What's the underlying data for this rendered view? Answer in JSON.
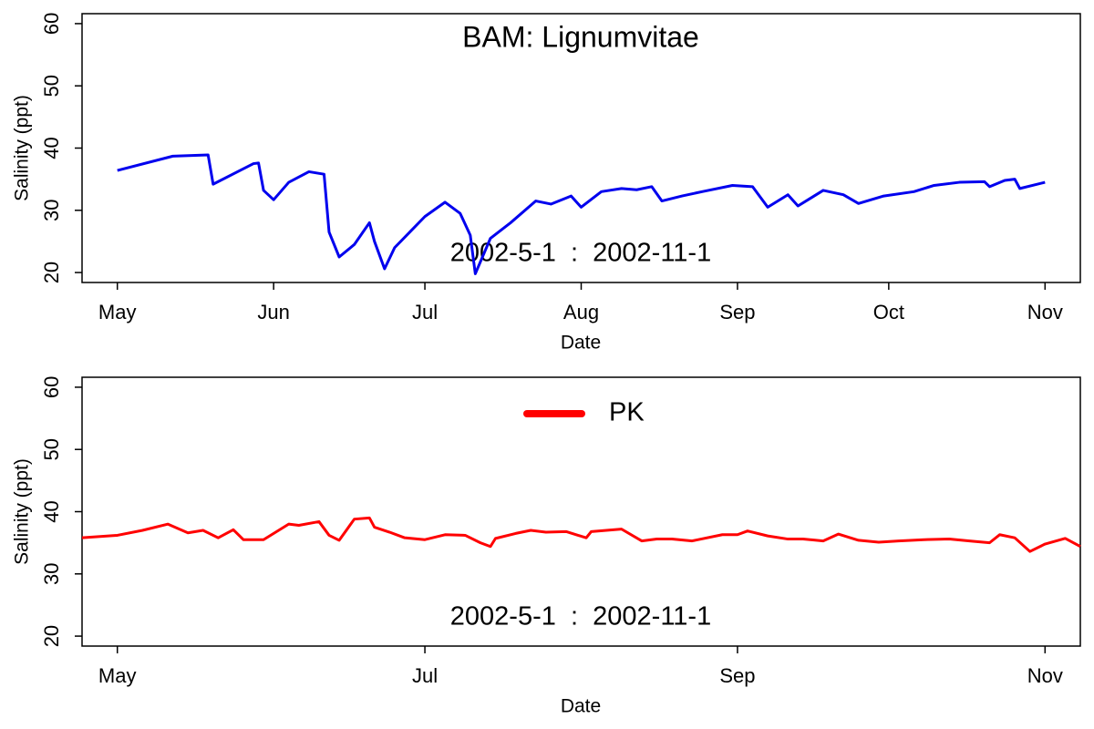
{
  "chart_data": [
    {
      "type": "line",
      "title": "BAM: Lignumvitae",
      "annotation": "2002-5-1  :  2002-11-1",
      "x_label": "Date",
      "y_label": "Salinity (ppt)",
      "x": [
        "2002-05-01",
        "2002-05-12",
        "2002-05-19",
        "2002-05-20",
        "2002-05-28",
        "2002-05-29",
        "2002-05-30",
        "2002-06-01",
        "2002-06-04",
        "2002-06-08",
        "2002-06-11",
        "2002-06-12",
        "2002-06-14",
        "2002-06-17",
        "2002-06-20",
        "2002-06-21",
        "2002-06-23",
        "2002-06-25",
        "2002-06-28",
        "2002-07-01",
        "2002-07-05",
        "2002-07-08",
        "2002-07-10",
        "2002-07-11",
        "2002-07-14",
        "2002-07-18",
        "2002-07-23",
        "2002-07-26",
        "2002-07-30",
        "2002-08-01",
        "2002-08-05",
        "2002-08-09",
        "2002-08-12",
        "2002-08-15",
        "2002-08-17",
        "2002-08-21",
        "2002-08-25",
        "2002-08-31",
        "2002-09-04",
        "2002-09-07",
        "2002-09-11",
        "2002-09-13",
        "2002-09-18",
        "2002-09-22",
        "2002-09-25",
        "2002-09-30",
        "2002-10-06",
        "2002-10-10",
        "2002-10-15",
        "2002-10-20",
        "2002-10-21",
        "2002-10-24",
        "2002-10-26",
        "2002-10-27",
        "2002-11-01"
      ],
      "series": [
        {
          "color": "#0000ee",
          "values": [
            36.4,
            38.7,
            38.9,
            34.2,
            37.5,
            37.6,
            33.2,
            31.7,
            34.5,
            36.2,
            35.8,
            26.5,
            22.5,
            24.5,
            28,
            25,
            20.6,
            24,
            26.5,
            29,
            31.3,
            29.5,
            26,
            19.8,
            25.5,
            28,
            31.5,
            31,
            32.3,
            30.5,
            33,
            33.5,
            33.3,
            33.8,
            31.5,
            32.3,
            33,
            34,
            33.8,
            30.5,
            32.5,
            30.7,
            33.2,
            32.5,
            31.1,
            32.3,
            33,
            34,
            34.5,
            34.6,
            33.8,
            34.8,
            35,
            33.5,
            34.5
          ]
        }
      ],
      "xlim": [
        "2002-04-24",
        "2002-11-08"
      ],
      "xticks": [
        {
          "value": "2002-05-01",
          "label": "May"
        },
        {
          "value": "2002-06-01",
          "label": "Jun"
        },
        {
          "value": "2002-07-01",
          "label": "Jul"
        },
        {
          "value": "2002-08-01",
          "label": "Aug"
        },
        {
          "value": "2002-09-01",
          "label": "Sep"
        },
        {
          "value": "2002-10-01",
          "label": "Oct"
        },
        {
          "value": "2002-11-01",
          "label": "Nov"
        }
      ],
      "ylim": [
        18.4,
        61.6
      ],
      "yticks": [
        20,
        30,
        40,
        50,
        60
      ]
    },
    {
      "type": "line",
      "annotation": "2002-5-1  :  2002-11-1",
      "x_label": "Date",
      "y_label": "Salinity (ppt)",
      "legend": "top",
      "x": [
        "2002-04-24",
        "2002-05-01",
        "2002-05-06",
        "2002-05-11",
        "2002-05-15",
        "2002-05-18",
        "2002-05-21",
        "2002-05-24",
        "2002-05-26",
        "2002-05-30",
        "2002-06-04",
        "2002-06-06",
        "2002-06-10",
        "2002-06-12",
        "2002-06-14",
        "2002-06-17",
        "2002-06-20",
        "2002-06-21",
        "2002-06-24",
        "2002-06-27",
        "2002-07-01",
        "2002-07-05",
        "2002-07-09",
        "2002-07-12",
        "2002-07-14",
        "2002-07-15",
        "2002-07-19",
        "2002-07-22",
        "2002-07-25",
        "2002-07-29",
        "2002-08-02",
        "2002-08-03",
        "2002-08-09",
        "2002-08-13",
        "2002-08-16",
        "2002-08-19",
        "2002-08-23",
        "2002-08-29",
        "2002-09-01",
        "2002-09-03",
        "2002-09-07",
        "2002-09-11",
        "2002-09-14",
        "2002-09-18",
        "2002-09-21",
        "2002-09-25",
        "2002-09-29",
        "2002-10-03",
        "2002-10-08",
        "2002-10-13",
        "2002-10-17",
        "2002-10-21",
        "2002-10-23",
        "2002-10-26",
        "2002-10-29",
        "2002-11-01",
        "2002-11-05",
        "2002-11-08"
      ],
      "series": [
        {
          "name": "PK",
          "color": "#ff0000",
          "values": [
            35.8,
            36.2,
            37,
            38,
            36.6,
            37,
            35.8,
            37.1,
            35.5,
            35.5,
            38,
            37.8,
            38.4,
            36.2,
            35.4,
            38.8,
            39,
            37.5,
            36.7,
            35.8,
            35.5,
            36.3,
            36.2,
            35,
            34.4,
            35.7,
            36.5,
            37,
            36.7,
            36.8,
            35.8,
            36.8,
            37.2,
            35.3,
            35.6,
            35.6,
            35.3,
            36.3,
            36.3,
            36.9,
            36.1,
            35.6,
            35.6,
            35.3,
            36.4,
            35.4,
            35.1,
            35.3,
            35.5,
            35.6,
            35.3,
            35,
            36.3,
            35.8,
            33.6,
            34.8,
            35.7,
            34.4
          ]
        }
      ],
      "xlim": [
        "2002-04-24",
        "2002-11-08"
      ],
      "xticks": [
        {
          "value": "2002-05-01",
          "label": "May"
        },
        {
          "value": "2002-07-01",
          "label": "Jul"
        },
        {
          "value": "2002-09-01",
          "label": "Sep"
        },
        {
          "value": "2002-11-01",
          "label": "Nov"
        }
      ],
      "ylim": [
        18.4,
        61.6
      ],
      "yticks": [
        20,
        30,
        40,
        50,
        60
      ]
    }
  ]
}
